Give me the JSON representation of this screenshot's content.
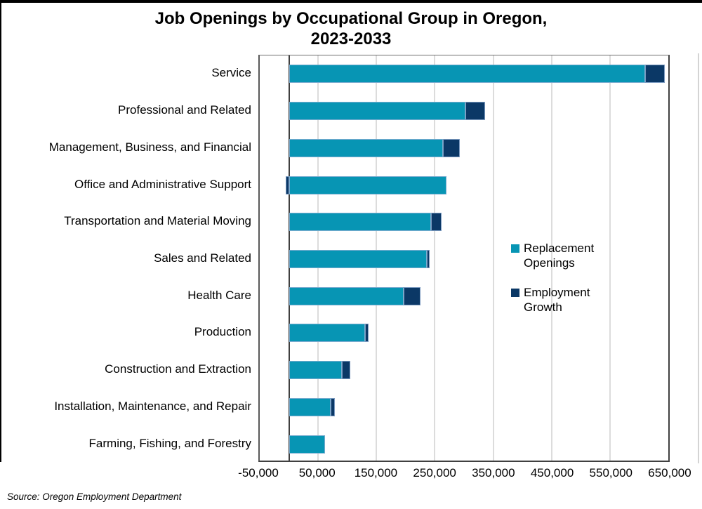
{
  "title": {
    "line1": "Job Openings by Occupational Group in Oregon,",
    "line2": "2023-2033"
  },
  "source": "Source: Oregon Employment Department",
  "legend": [
    {
      "line1": "Replacement",
      "line2": "Openings",
      "color": "#0795B4"
    },
    {
      "line1": "Employment",
      "line2": "Growth",
      "color": "#0B3866"
    }
  ],
  "colors": {
    "replacement_openings": "#0795B4",
    "employment_growth": "#0B3866",
    "gridline": "#dcdcdc",
    "zero_axis": "#3f3f3f"
  },
  "chart_data": {
    "type": "bar",
    "orientation": "horizontal",
    "stacked": true,
    "title": "Job Openings by Occupational Group in Oregon, 2023-2033",
    "categories": [
      "Service",
      "Professional and Related",
      "Management, Business, and Financial",
      "Office and Administrative Support",
      "Transportation and Material Moving",
      "Sales and Related",
      "Health Care",
      "Production",
      "Construction and Extraction",
      "Installation, Maintenance, and Repair",
      "Farming, Fishing, and Forestry"
    ],
    "series": [
      {
        "name": "Replacement Openings",
        "color": "#0795B4",
        "values": [
          610000,
          303000,
          264000,
          270000,
          243000,
          236000,
          196000,
          130000,
          91000,
          71000,
          62000
        ]
      },
      {
        "name": "Employment Growth",
        "color": "#0B3866",
        "values": [
          34000,
          33000,
          29000,
          -6000,
          18000,
          5000,
          29000,
          6000,
          14000,
          8000,
          0
        ]
      }
    ],
    "xlim": [
      -50000,
      650000
    ],
    "x_ticks": [
      -50000,
      50000,
      150000,
      250000,
      350000,
      450000,
      550000,
      650000
    ],
    "x_tick_labels": [
      "-50,000",
      "50,000",
      "150,000",
      "250,000",
      "350,000",
      "450,000",
      "550,000",
      "650,000"
    ],
    "grid": true,
    "legend_position": "inside-right"
  }
}
